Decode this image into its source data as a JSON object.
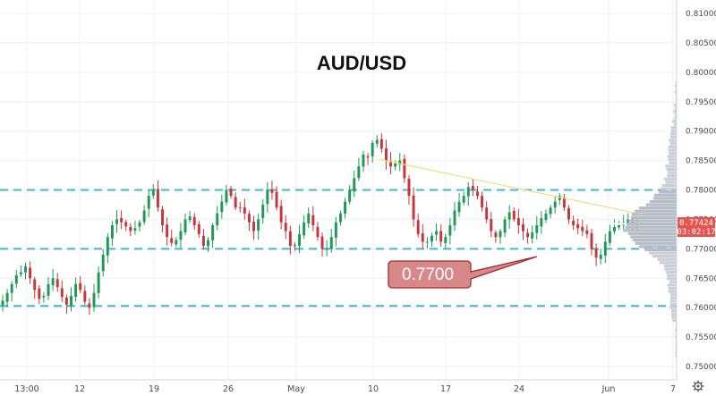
{
  "chart_data": {
    "type": "candlestick",
    "title": "AUD/USD",
    "xlabel": "",
    "ylabel": "",
    "ylim": [
      0.7475,
      0.8125
    ],
    "grid": true,
    "y_ticks": [
      "0.81000",
      "0.80500",
      "0.80000",
      "0.79500",
      "0.79000",
      "0.78500",
      "0.78000",
      "0.77500",
      "0.77000",
      "0.76500",
      "0.76000",
      "0.75500",
      "0.75000"
    ],
    "x_ticks": [
      "13:00",
      "12",
      "19",
      "26",
      "May",
      "10",
      "17",
      "24",
      "Jun",
      "7"
    ],
    "horizontal_levels": [
      0.78,
      0.77,
      0.7603
    ],
    "trendline": {
      "from": 0.7852,
      "to": 0.776
    },
    "annotation": {
      "text": "0.7700"
    },
    "current_price": {
      "value": "0.77424",
      "countdown": "03:02:17"
    },
    "series": [
      {
        "values": [
          0.7612,
          0.7625,
          0.764,
          0.7655,
          0.766,
          0.767,
          0.765,
          0.763,
          0.7615,
          0.762,
          0.764,
          0.765,
          0.7635,
          0.7618,
          0.7605,
          0.762,
          0.764,
          0.763,
          0.761,
          0.76,
          0.7625,
          0.766,
          0.769,
          0.772,
          0.774,
          0.775,
          0.7745,
          0.7738,
          0.773,
          0.7735,
          0.7745,
          0.7765,
          0.779,
          0.78,
          0.777,
          0.774,
          0.772,
          0.771,
          0.7715,
          0.773,
          0.775,
          0.7755,
          0.774,
          0.7725,
          0.7705,
          0.7715,
          0.774,
          0.776,
          0.778,
          0.78,
          0.779,
          0.777,
          0.777,
          0.776,
          0.7745,
          0.773,
          0.775,
          0.7775,
          0.78,
          0.7795,
          0.777,
          0.7745,
          0.773,
          0.7705,
          0.7705,
          0.7725,
          0.7745,
          0.776,
          0.774,
          0.772,
          0.77,
          0.77,
          0.772,
          0.7745,
          0.776,
          0.778,
          0.78,
          0.782,
          0.784,
          0.786,
          0.7855,
          0.788,
          0.7885,
          0.787,
          0.785,
          0.784,
          0.7845,
          0.785,
          0.782,
          0.779,
          0.775,
          0.7725,
          0.7712,
          0.7712,
          0.7722,
          0.773,
          0.7712,
          0.772,
          0.774,
          0.7765,
          0.778,
          0.779,
          0.7805,
          0.78,
          0.779,
          0.777,
          0.775,
          0.773,
          0.772,
          0.773,
          0.775,
          0.7762,
          0.775,
          0.774,
          0.773,
          0.772,
          0.7728,
          0.774,
          0.7752,
          0.776,
          0.777,
          0.778,
          0.779,
          0.777,
          0.775,
          0.774,
          0.7735,
          0.773,
          0.7725,
          0.77,
          0.7685,
          0.769,
          0.7712,
          0.773,
          0.7737,
          0.774,
          0.7745,
          0.775,
          0.7742,
          0.7742
        ]
      }
    ]
  }
}
